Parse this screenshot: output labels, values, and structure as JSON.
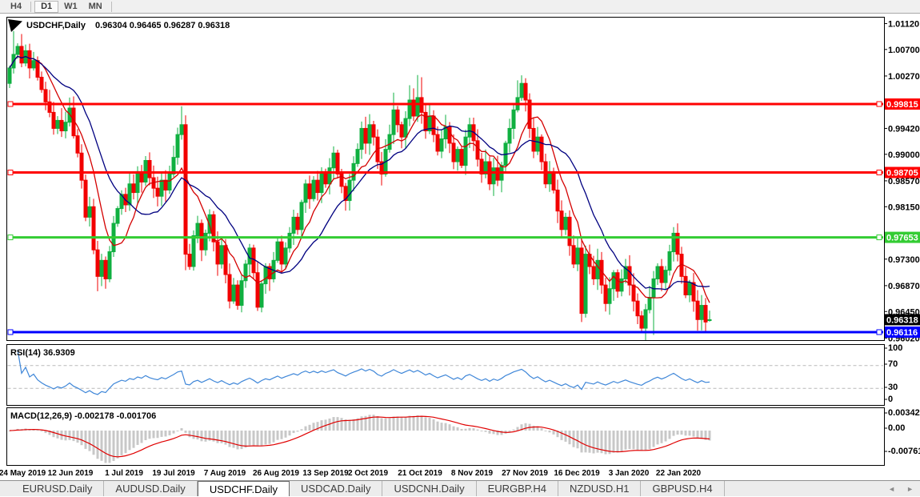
{
  "toolbar": {
    "timeframes": [
      {
        "label": "H4",
        "active": false
      },
      {
        "label": "D1",
        "active": true
      },
      {
        "label": "W1",
        "active": false
      },
      {
        "label": "MN",
        "active": false
      }
    ]
  },
  "colors": {
    "candle_up": "#0FB040",
    "candle_down": "#F20000",
    "ma_fast": "#D40000",
    "ma_slow": "#000080",
    "resistance_line": "#FF0000",
    "support_line": "#33CC33",
    "lower_line": "#0000FF",
    "rsi_line": "#3E86D8",
    "macd_histogram": "#C8C8C8",
    "macd_signal": "#E00000",
    "current_price_bg": "#000000",
    "axis_text": "#000000"
  },
  "chart_data": {
    "type": "candlestick",
    "title": "USDCHF,Daily",
    "symbol_label": "USDCHF,Daily",
    "ohlc_display": "0.96304 0.96465 0.96287 0.96318",
    "ohlc_last": {
      "open": 0.96304,
      "high": 0.96465,
      "low": 0.96287,
      "close": 0.96318
    },
    "price_axis": {
      "ticks": [
        "1.01120",
        "1.00700",
        "1.00270",
        "0.99420",
        "0.99000",
        "0.98570",
        "0.98150",
        "0.97300",
        "0.96870",
        "0.96450",
        "0.96020"
      ],
      "range": [
        0.9602,
        1.0112
      ]
    },
    "date_axis": [
      "24 May 2019",
      "12 Jun 2019",
      "1 Jul 2019",
      "19 Jul 2019",
      "7 Aug 2019",
      "26 Aug 2019",
      "13 Sep 2019",
      "2 Oct 2019",
      "21 Oct 2019",
      "8 Nov 2019",
      "27 Nov 2019",
      "16 Dec 2019",
      "3 Jan 2020",
      "22 Jan 2020"
    ],
    "horizontal_lines": [
      {
        "label": "0.99815",
        "value": 0.99815,
        "role": "resistance",
        "color": "#FF0000"
      },
      {
        "label": "0.98705",
        "value": 0.98705,
        "role": "resistance",
        "color": "#FF0000"
      },
      {
        "label": "0.97653",
        "value": 0.97653,
        "role": "support",
        "color": "#33CC33"
      },
      {
        "label": "0.96116",
        "value": 0.96116,
        "role": "support",
        "color": "#0000FF"
      }
    ],
    "current_price": {
      "label": "0.96318",
      "value": 0.96318
    },
    "moving_averages": [
      {
        "name": "fast",
        "period": 8,
        "color": "#D40000"
      },
      {
        "name": "slow",
        "period": 17,
        "color": "#000080"
      }
    ],
    "candles": {
      "first_open": 1.0015,
      "closes": [
        1.004,
        1.0062,
        1.0075,
        1.0048,
        1.0068,
        1.004,
        1.0052,
        1.0025,
        1.0005,
        0.9985,
        0.9968,
        0.9942,
        0.9955,
        0.9938,
        0.9952,
        0.9975,
        0.993,
        0.9902,
        0.9858,
        0.9798,
        0.9815,
        0.9745,
        0.9702,
        0.9728,
        0.9698,
        0.9742,
        0.9788,
        0.9812,
        0.9835,
        0.9818,
        0.9852,
        0.9838,
        0.9872,
        0.9855,
        0.989,
        0.9862,
        0.9845,
        0.9832,
        0.9858,
        0.9842,
        0.9868,
        0.9895,
        0.9932,
        0.9948,
        0.9738,
        0.9718,
        0.9768,
        0.9788,
        0.9745,
        0.9772,
        0.9802,
        0.9758,
        0.9722,
        0.9752,
        0.9705,
        0.9662,
        0.9688,
        0.9655,
        0.9695,
        0.9722,
        0.9748,
        0.9708,
        0.9652,
        0.969,
        0.9718,
        0.9698,
        0.9728,
        0.9758,
        0.9722,
        0.9748,
        0.9772,
        0.9798,
        0.9778,
        0.9822,
        0.9852,
        0.9828,
        0.9858,
        0.9838,
        0.9872,
        0.9852,
        0.9878,
        0.9902,
        0.9868,
        0.9848,
        0.9825,
        0.9858,
        0.9885,
        0.9908,
        0.9942,
        0.9918,
        0.9948,
        0.9928,
        0.9888,
        0.9868,
        0.9908,
        0.9932,
        0.9972,
        0.9948,
        0.9928,
        0.9958,
        0.9988,
        0.9962,
        0.9992,
        0.9968,
        0.9938,
        0.9962,
        0.9932,
        0.9905,
        0.9925,
        0.9945,
        0.9918,
        0.9888,
        0.9908,
        0.9882,
        0.9928,
        0.9948,
        0.9922,
        0.9892,
        0.9868,
        0.9888,
        0.9852,
        0.9878,
        0.9858,
        0.9882,
        0.9918,
        0.9942,
        0.9972,
        0.9992,
        1.0015,
        0.9988,
        0.9942,
        0.9905,
        0.9928,
        0.9888,
        0.9852,
        0.9872,
        0.9842,
        0.9808,
        0.9778,
        0.9798,
        0.9752,
        0.9722,
        0.9748,
        0.9642,
        0.9738,
        0.9718,
        0.9698,
        0.9728,
        0.9688,
        0.9658,
        0.9682,
        0.9708,
        0.9678,
        0.9698,
        0.9718,
        0.9688,
        0.9662,
        0.9638,
        0.9618,
        0.9648,
        0.9668,
        0.9698,
        0.9718,
        0.9692,
        0.9712,
        0.9742,
        0.9772,
        0.9738,
        0.9702,
        0.9672,
        0.9692,
        0.9662,
        0.9632,
        0.9655,
        0.9628,
        0.96318
      ],
      "wick_overrides": {
        "1": {
          "h": 1.01
        },
        "3": {
          "h": 1.0095
        },
        "15": {
          "h": 0.9992
        },
        "22": {
          "l": 0.9678
        },
        "24": {
          "l": 0.9682
        },
        "43": {
          "h": 0.9978
        },
        "44": {
          "l": 0.9712
        },
        "55": {
          "l": 0.965
        },
        "57": {
          "l": 0.9648
        },
        "62": {
          "l": 0.9646
        },
        "96": {
          "h": 1.0
        },
        "100": {
          "h": 1.0012
        },
        "102": {
          "h": 1.00285
        },
        "103": {
          "h": 1.0025
        },
        "127": {
          "h": 1.002
        },
        "128": {
          "h": 1.0028
        },
        "143": {
          "l": 0.9628
        },
        "144": {
          "h": 0.9752
        },
        "149": {
          "l": 0.9645
        },
        "158": {
          "l": 0.9612
        },
        "161": {
          "l": 0.9607
        },
        "166": {
          "h": 0.9782
        },
        "172": {
          "l": 0.9614
        },
        "174": {
          "l": 0.961
        },
        "175": {
          "o": 0.96304,
          "h": 0.96465,
          "l": 0.96287,
          "c": 0.96318
        }
      }
    },
    "indicators": {
      "rsi": {
        "label": "RSI(14) 36.9309",
        "period": 14,
        "last_value": 36.9309,
        "levels": [
          70,
          30
        ],
        "scale": [
          "100",
          "70",
          "30",
          "0"
        ],
        "color": "#3E86D8"
      },
      "macd": {
        "label": "MACD(12,26,9) -0.002178 -0.001706",
        "fast": 12,
        "slow": 26,
        "signal": 9,
        "main_last": -0.002178,
        "signal_last": -0.001706,
        "scale": [
          "0.003428",
          "0.00",
          "-0.007615"
        ],
        "histogram_color": "#C8C8C8",
        "signal_color": "#E00000"
      }
    }
  },
  "tabs": {
    "items": [
      {
        "label": "EURUSD.Daily",
        "active": false
      },
      {
        "label": "AUDUSD.Daily",
        "active": false
      },
      {
        "label": "USDCHF.Daily",
        "active": true
      },
      {
        "label": "USDCAD.Daily",
        "active": false
      },
      {
        "label": "USDCNH.Daily",
        "active": false
      },
      {
        "label": "EURGBP.H4",
        "active": false
      },
      {
        "label": "NZDUSD.H1",
        "active": false
      },
      {
        "label": "GBPUSD.H4",
        "active": false
      }
    ],
    "scroll_left": "◄",
    "scroll_right": "►"
  }
}
